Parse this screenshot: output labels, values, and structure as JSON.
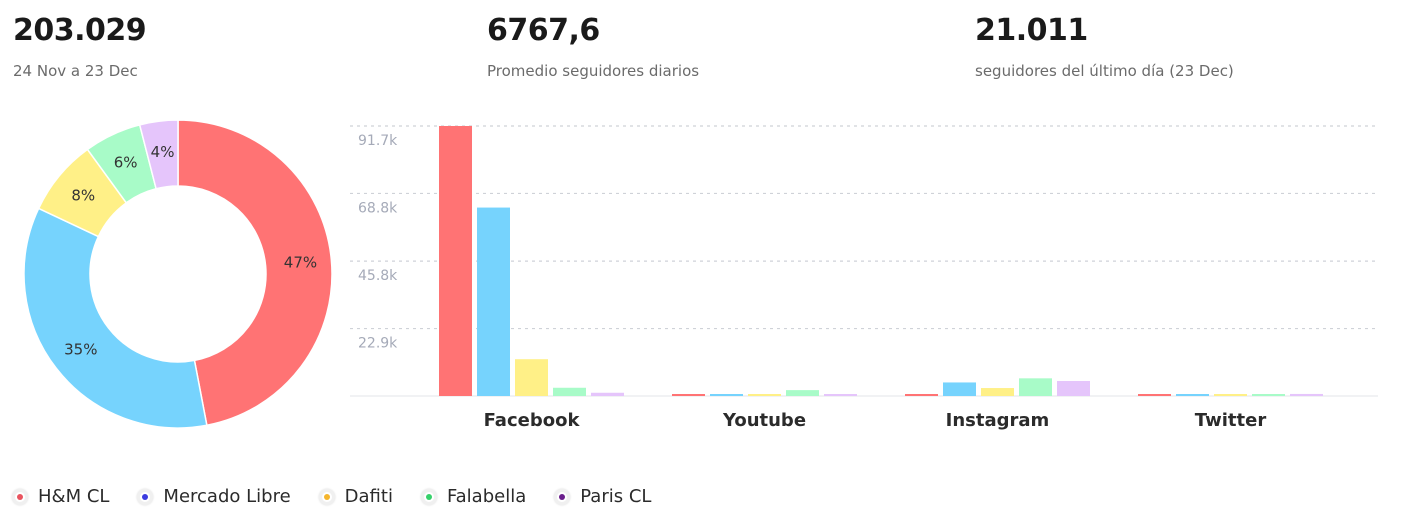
{
  "kpis": [
    {
      "value": "203.029",
      "label": "24 Nov a 23 Dec"
    },
    {
      "value": "6767,6",
      "label": "Promedio seguidores diarios"
    },
    {
      "value": "21.011",
      "label": "seguidores del último día (23 Dec)"
    }
  ],
  "legend": [
    {
      "label": "H&M CL",
      "color": "#e9545f"
    },
    {
      "label": "Mercado Libre",
      "color": "#3b3be0"
    },
    {
      "label": "Dafiti",
      "color": "#f5b52d"
    },
    {
      "label": "Falabella",
      "color": "#36d16b"
    },
    {
      "label": "Paris CL",
      "color": "#6a1e8c"
    }
  ],
  "chart_data": [
    {
      "type": "pie",
      "variant": "donut",
      "series": [
        {
          "name": "H&M CL",
          "value": 47,
          "label": "47%",
          "color": "#ff7374"
        },
        {
          "name": "Mercado Libre",
          "value": 35,
          "label": "35%",
          "color": "#76d3fd"
        },
        {
          "name": "Dafiti",
          "value": 8,
          "label": "8%",
          "color": "#fff087"
        },
        {
          "name": "Falabella",
          "value": 6,
          "label": "6%",
          "color": "#a8fbc8"
        },
        {
          "name": "Paris CL",
          "value": 4,
          "label": "4%",
          "color": "#e5c5fb"
        }
      ]
    },
    {
      "type": "bar",
      "categories": [
        "Facebook",
        "Youtube",
        "Instagram",
        "Twitter"
      ],
      "ylim": [
        0,
        91700
      ],
      "yticks": [
        22900,
        45800,
        68800,
        91700
      ],
      "ytick_labels": [
        "22.9k",
        "45.8k",
        "68.8k",
        "91.7k"
      ],
      "grid": true,
      "series": [
        {
          "name": "H&M CL",
          "color": "#ff7374",
          "values": [
            91700,
            500,
            400,
            500
          ]
        },
        {
          "name": "Mercado Libre",
          "color": "#76d3fd",
          "values": [
            64000,
            400,
            4600,
            100
          ]
        },
        {
          "name": "Dafiti",
          "color": "#fff087",
          "values": [
            12500,
            100,
            2700,
            100
          ]
        },
        {
          "name": "Falabella",
          "color": "#a8fbc8",
          "values": [
            2800,
            2000,
            6000,
            600
          ]
        },
        {
          "name": "Paris CL",
          "color": "#e5c5fb",
          "values": [
            1100,
            300,
            5100,
            700
          ]
        }
      ]
    }
  ]
}
